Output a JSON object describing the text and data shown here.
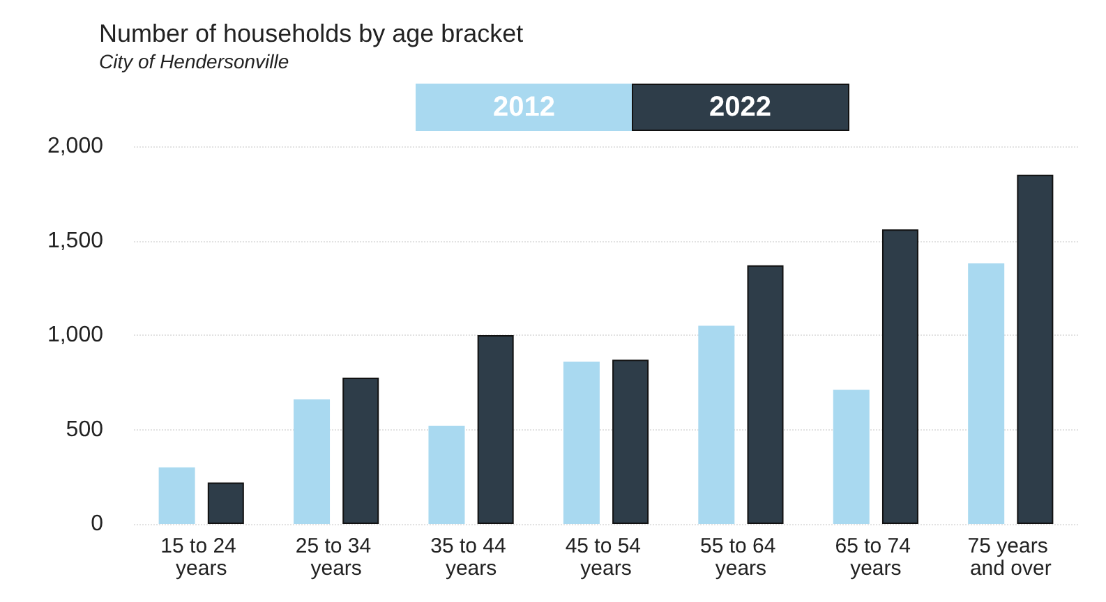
{
  "chart_data": {
    "type": "bar",
    "title": "Number of households by age bracket",
    "subtitle": "City of Hendersonville",
    "categories": [
      "15 to 24 years",
      "25 to 34 years",
      "35 to 44 years",
      "45 to 54 years",
      "55 to 64 years",
      "65 to 74 years",
      "75 years and over"
    ],
    "series": [
      {
        "name": "2012",
        "color": "#a9d9f0",
        "values": [
          300,
          660,
          520,
          860,
          1050,
          710,
          1380
        ]
      },
      {
        "name": "2022",
        "color": "#2e3d49",
        "values": [
          220,
          775,
          1000,
          870,
          1370,
          1560,
          1850
        ]
      }
    ],
    "ylim": [
      0,
      2000
    ],
    "yticks": [
      0,
      500,
      {
        "value": 1000,
        "label": "1,000"
      },
      {
        "value": 1500,
        "label": "1,500"
      },
      {
        "value": 2000,
        "label": "2,000"
      }
    ],
    "grid": "y",
    "legend": "top"
  }
}
